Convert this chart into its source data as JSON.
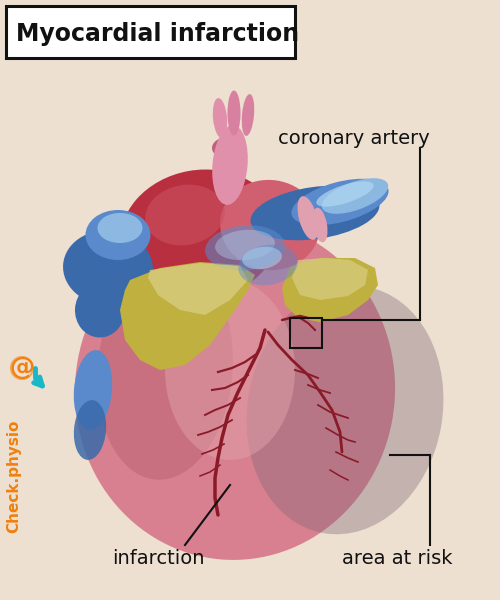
{
  "bg_color": "#ede0d0",
  "title": "Myocardial infarction",
  "title_fontsize": 17,
  "title_box_color": "#ffffff",
  "title_box_edge": "#111111",
  "label_coronary": "coronary artery",
  "label_infarction": "infarction",
  "label_risk": "area at risk",
  "label_fontsize": 14,
  "watermark": "Check.physio",
  "watermark_color": "#f08010",
  "watermark_symbol_color": "#18b8c8",
  "heart_pink": "#d88090",
  "heart_red": "#b83040",
  "heart_dark_red": "#902030",
  "heart_light": "#e8a0a8",
  "blue_dark": "#3a6aaa",
  "blue_mid": "#5a8acc",
  "blue_light": "#8ab8e0",
  "blue_highlight": "#b0d8f0",
  "yellow_dark": "#a89830",
  "yellow_mid": "#c0b040",
  "yellow_light": "#d8cc80",
  "infarction_purple": "#806878",
  "pink_vessel": "#e8a0b0",
  "line_color": "#111111",
  "coronary_color": "#8b1a28"
}
